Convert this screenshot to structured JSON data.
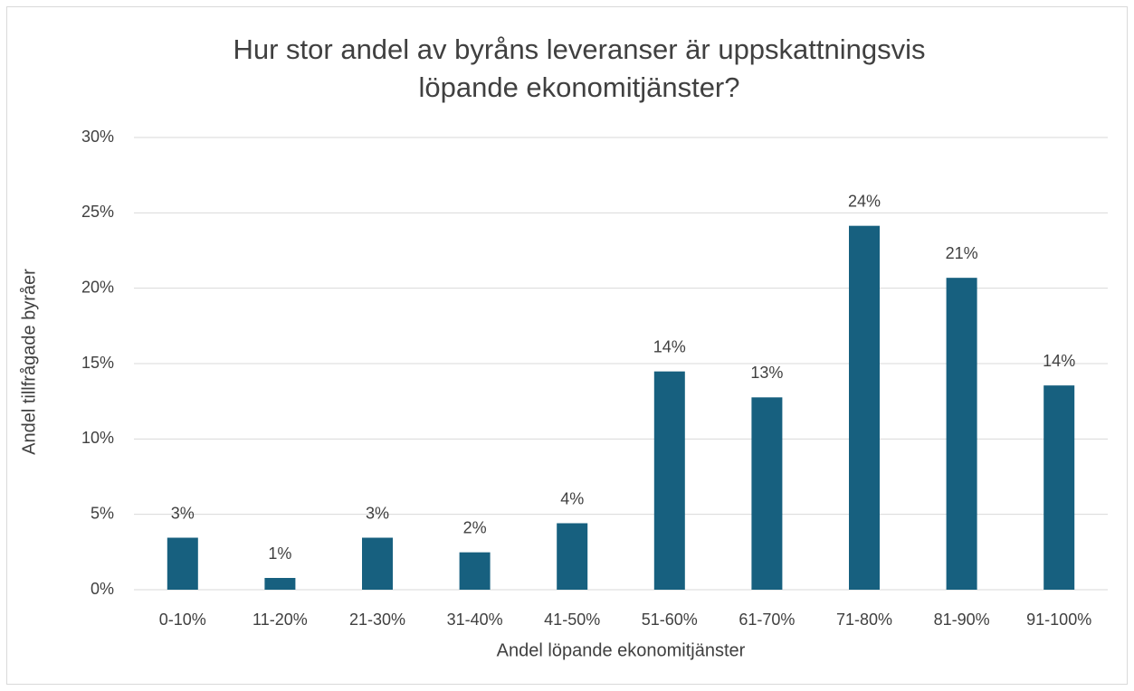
{
  "chart_data": {
    "type": "bar",
    "title": [
      "Hur stor andel av byråns leveranser är uppskattningsvis",
      "löpande ekonomitjänster?"
    ],
    "x_label": "Andel löpande ekonomitjänster",
    "y_label": "Andel tillfrågade byråer",
    "categories": [
      "0-10%",
      "11-20%",
      "21-30%",
      "31-40%",
      "41-50%",
      "51-60%",
      "61-70%",
      "71-80%",
      "81-90%",
      "91-100%"
    ],
    "values": [
      3.45,
      0.78,
      3.45,
      2.48,
      4.41,
      14.48,
      12.76,
      24.14,
      20.69,
      13.55
    ],
    "value_labels": [
      "3%",
      "1%",
      "3%",
      "2%",
      "4%",
      "14%",
      "13%",
      "24%",
      "21%",
      "14%"
    ],
    "color": "#17607f",
    "ylim": [
      0,
      30
    ],
    "yticks": [
      {
        "value": 0,
        "label": "0%"
      },
      {
        "value": 5,
        "label": "5%"
      },
      {
        "value": 10,
        "label": "10%"
      },
      {
        "value": 15,
        "label": "15%"
      },
      {
        "value": 20,
        "label": "20%"
      },
      {
        "value": 25,
        "label": "25%"
      },
      {
        "value": 30,
        "label": "30%"
      }
    ],
    "grid": true
  }
}
